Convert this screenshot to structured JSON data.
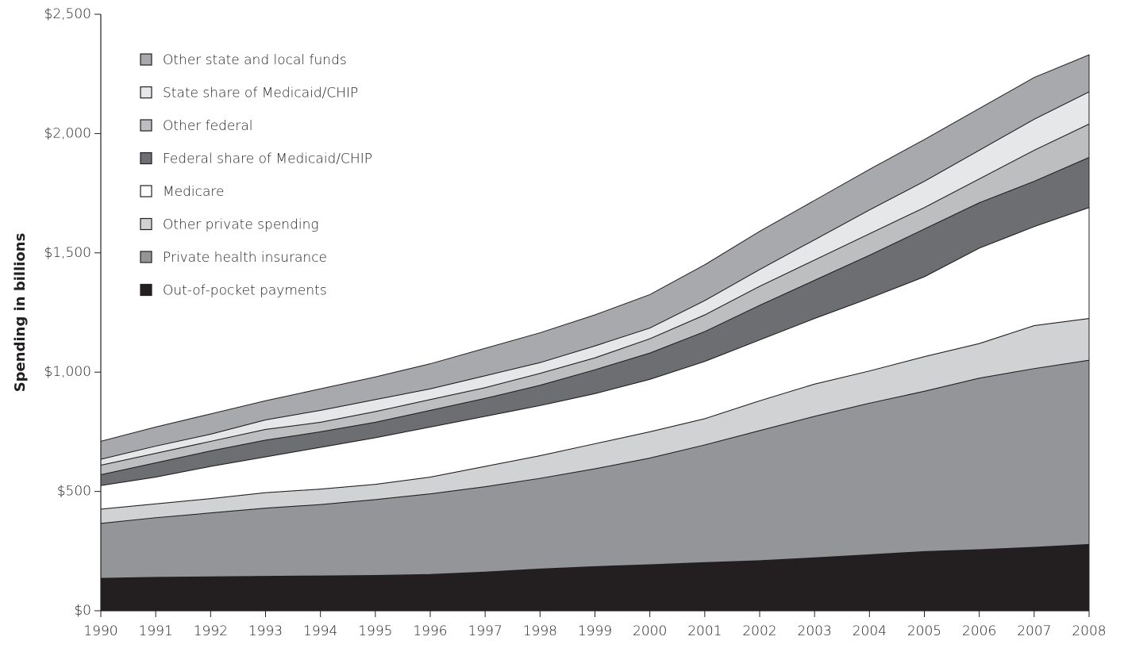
{
  "chart_data": {
    "type": "stacked_area",
    "y_label": "Spending in billions",
    "x": [
      1990,
      1991,
      1992,
      1993,
      1994,
      1995,
      1996,
      1997,
      1998,
      1999,
      2000,
      2001,
      2002,
      2003,
      2004,
      2005,
      2006,
      2007,
      2008
    ],
    "xlim": [
      1990,
      2008
    ],
    "xticks": [
      1990,
      1991,
      1992,
      1993,
      1994,
      1995,
      1996,
      1997,
      1998,
      1999,
      2000,
      2001,
      2002,
      2003,
      2004,
      2005,
      2006,
      2007,
      2008
    ],
    "ylim": [
      0,
      2500
    ],
    "yticks": [
      {
        "value": 0,
        "label": "$0"
      },
      {
        "value": 500,
        "label": "$500"
      },
      {
        "value": 1000,
        "label": "$1,000"
      },
      {
        "value": 1500,
        "label": "$1,500"
      },
      {
        "value": 2000,
        "label": "$2,000"
      },
      {
        "value": 2500,
        "label": "$2,500"
      }
    ],
    "legend": "upper left",
    "series": [
      {
        "name": "Out-of-pocket payments",
        "color": "#231f20",
        "values": [
          136,
          140,
          142,
          144,
          146,
          148,
          152,
          162,
          175,
          185,
          193,
          202,
          210,
          222,
          235,
          248,
          256,
          266,
          278
        ]
      },
      {
        "name": "Private health insurance",
        "color": "#939598",
        "values": [
          230,
          250,
          268,
          286,
          299,
          318,
          338,
          358,
          380,
          410,
          447,
          493,
          545,
          593,
          635,
          672,
          719,
          749,
          772
        ]
      },
      {
        "name": "Other private spending",
        "color": "#d1d2d4",
        "values": [
          60,
          58,
          60,
          65,
          65,
          64,
          70,
          85,
          95,
          105,
          110,
          110,
          125,
          135,
          135,
          145,
          145,
          180,
          175
        ]
      },
      {
        "name": "Medicare",
        "color": "#ffffff",
        "values": [
          99,
          112,
          135,
          150,
          175,
          195,
          210,
          210,
          210,
          210,
          220,
          240,
          255,
          275,
          305,
          335,
          400,
          415,
          465
        ]
      },
      {
        "name": "Federal share of Medicaid/CHIP",
        "color": "#6d6e71",
        "values": [
          45,
          60,
          65,
          70,
          65,
          65,
          70,
          75,
          85,
          100,
          110,
          125,
          145,
          160,
          180,
          200,
          190,
          190,
          210
        ]
      },
      {
        "name": "Other federal",
        "color": "#bcbec0",
        "values": [
          40,
          40,
          40,
          45,
          40,
          45,
          45,
          45,
          50,
          50,
          60,
          70,
          80,
          85,
          90,
          90,
          100,
          130,
          140
        ]
      },
      {
        "name": "State share of Medicaid/CHIP",
        "color": "#e6e7e8",
        "values": [
          25,
          30,
          30,
          40,
          50,
          50,
          45,
          50,
          45,
          50,
          45,
          60,
          70,
          85,
          100,
          110,
          120,
          130,
          135
        ]
      },
      {
        "name": "Other state and local funds",
        "color": "#a7a9ac",
        "values": [
          75,
          80,
          85,
          80,
          90,
          95,
          105,
          115,
          125,
          130,
          140,
          150,
          160,
          165,
          170,
          175,
          175,
          175,
          155
        ]
      }
    ]
  }
}
